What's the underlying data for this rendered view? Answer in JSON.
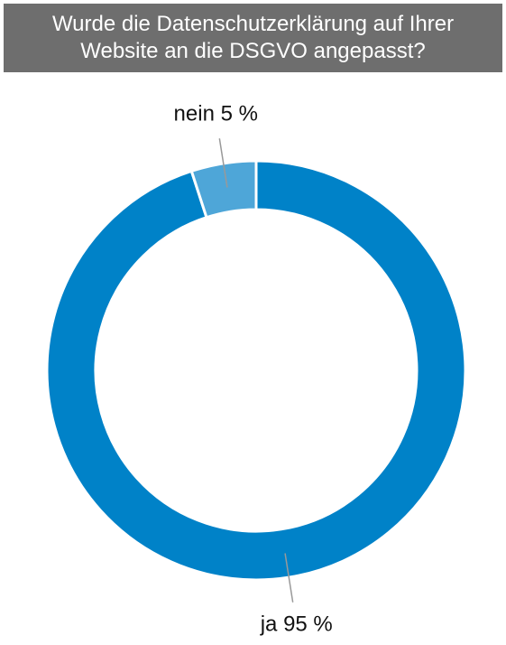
{
  "chart_data": {
    "type": "donut",
    "title": "Wurde die Datenschutzerklärung auf Ihrer Website an die DSGVO angepasst?",
    "categories": [
      "ja",
      "nein"
    ],
    "values": [
      95,
      5
    ],
    "value_labels": [
      "95 %",
      "5 %"
    ],
    "colors": [
      "#0082c8",
      "#4ea6d8"
    ]
  }
}
